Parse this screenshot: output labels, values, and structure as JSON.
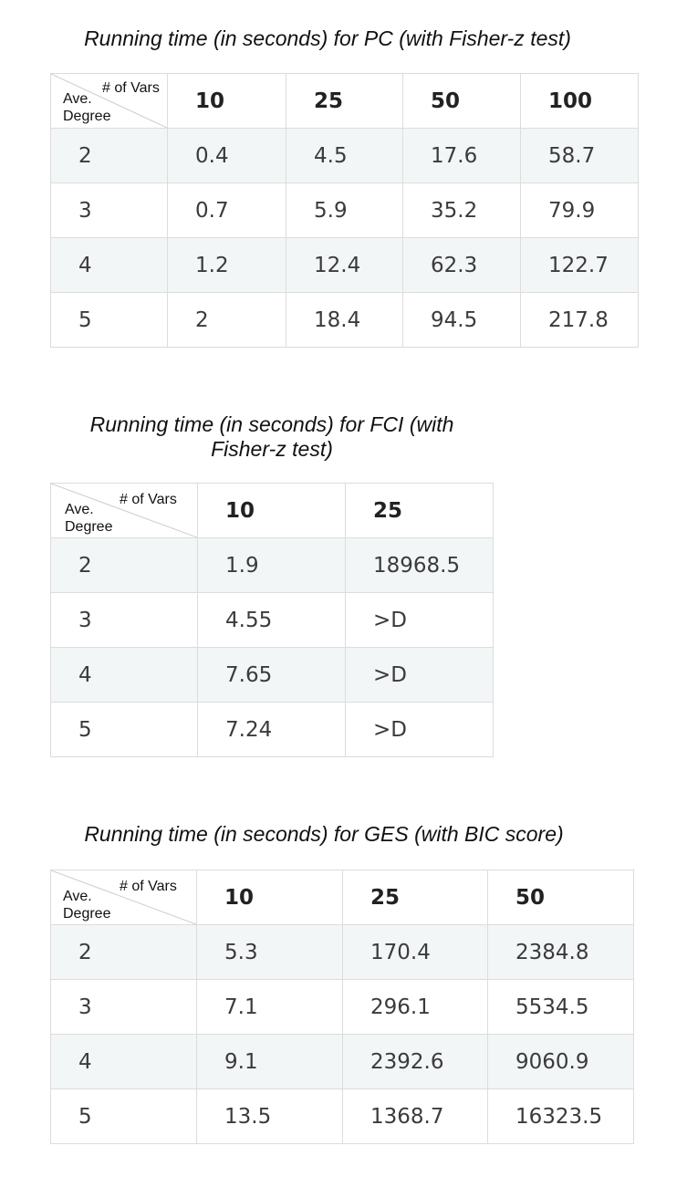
{
  "tables": [
    {
      "title": "Running time (in seconds) for PC (with Fisher-z test)",
      "corner": {
        "cols_label": "# of Vars",
        "rows_label_line1": "Ave.",
        "rows_label_line2": "Degree"
      },
      "columns": [
        "10",
        "25",
        "50",
        "100"
      ],
      "rows": [
        {
          "degree": "2",
          "values": [
            "0.4",
            "4.5",
            "17.6",
            "58.7"
          ]
        },
        {
          "degree": "3",
          "values": [
            "0.7",
            "5.9",
            "35.2",
            "79.9"
          ]
        },
        {
          "degree": "4",
          "values": [
            "1.2",
            "12.4",
            "62.3",
            "122.7"
          ]
        },
        {
          "degree": "5",
          "values": [
            "2",
            "18.4",
            "94.5",
            "217.8"
          ]
        }
      ]
    },
    {
      "title_line1": "Running time (in seconds) for FCI (with",
      "title_line2": "Fisher-z test)",
      "corner": {
        "cols_label": "# of Vars",
        "rows_label_line1": "Ave.",
        "rows_label_line2": "Degree"
      },
      "columns": [
        "10",
        "25"
      ],
      "rows": [
        {
          "degree": "2",
          "values": [
            "1.9",
            "18968.5"
          ]
        },
        {
          "degree": "3",
          "values": [
            "4.55",
            ">D"
          ]
        },
        {
          "degree": "4",
          "values": [
            "7.65",
            ">D"
          ]
        },
        {
          "degree": "5",
          "values": [
            "7.24",
            ">D"
          ]
        }
      ]
    },
    {
      "title": "Running time (in seconds) for GES (with BIC score)",
      "corner": {
        "cols_label": "# of Vars",
        "rows_label_line1": "Ave.",
        "rows_label_line2": "Degree"
      },
      "columns": [
        "10",
        "25",
        "50"
      ],
      "rows": [
        {
          "degree": "2",
          "values": [
            "5.3",
            "170.4",
            "2384.8"
          ]
        },
        {
          "degree": "3",
          "values": [
            "7.1",
            "296.1",
            "5534.5"
          ]
        },
        {
          "degree": "4",
          "values": [
            "9.1",
            "2392.6",
            "9060.9"
          ]
        },
        {
          "degree": "5",
          "values": [
            "13.5",
            "1368.7",
            "16323.5"
          ]
        }
      ]
    }
  ]
}
